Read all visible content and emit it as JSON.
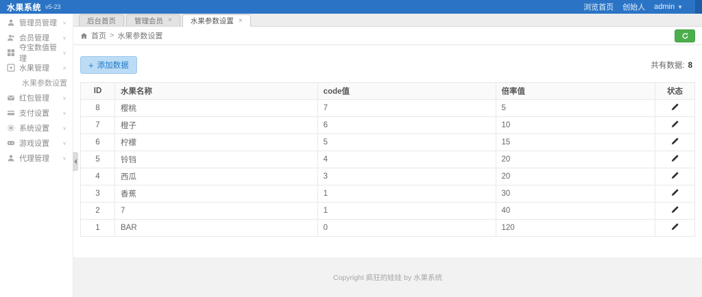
{
  "colors": {
    "brand_blue": "#2b74c5",
    "brand_blue_dark": "#1d5ea8",
    "refresh_green": "#4cae4c",
    "add_button_text": "#1e77c8",
    "add_button_bg": "#bcdcf5"
  },
  "topbar": {
    "title": "水果系统",
    "version": "v5-23",
    "links": {
      "browse_home": "浏览首页",
      "role": "创始人",
      "username": "admin"
    }
  },
  "sidebar": {
    "items": [
      {
        "label": "管理员管理",
        "icon": "user-icon",
        "expanded": false
      },
      {
        "label": "会员管理",
        "icon": "users-icon",
        "expanded": false
      },
      {
        "label": "夺宝数值管理",
        "icon": "treasure-icon",
        "expanded": false
      },
      {
        "label": "水果管理",
        "icon": "fruit-icon",
        "expanded": true,
        "children": [
          {
            "label": "水果参数设置",
            "active": true
          }
        ]
      },
      {
        "label": "红包管理",
        "icon": "red-packet-icon",
        "expanded": false
      },
      {
        "label": "支付设置",
        "icon": "payment-icon",
        "expanded": false
      },
      {
        "label": "系统设置",
        "icon": "gear-icon",
        "expanded": false
      },
      {
        "label": "游戏设置",
        "icon": "game-icon",
        "expanded": false
      },
      {
        "label": "代理管理",
        "icon": "agent-icon",
        "expanded": false
      }
    ]
  },
  "tabs": [
    {
      "label": "后台首页",
      "closable": false,
      "active": false
    },
    {
      "label": "管理会员",
      "closable": true,
      "active": false
    },
    {
      "label": "水果参数设置",
      "closable": true,
      "active": true
    }
  ],
  "breadcrumb": {
    "home": "首页",
    "separator": ">",
    "current": "水果参数设置"
  },
  "toolbar": {
    "add_button": "添加数据",
    "count_label": "共有数据:",
    "count": "8"
  },
  "table": {
    "headers": [
      "ID",
      "水果名称",
      "code值",
      "倍率值",
      "状态"
    ],
    "rows": [
      {
        "id": "8",
        "name": "樱桃",
        "code": "7",
        "rate": "5"
      },
      {
        "id": "7",
        "name": "橙子",
        "code": "6",
        "rate": "10"
      },
      {
        "id": "6",
        "name": "柠檬",
        "code": "5",
        "rate": "15"
      },
      {
        "id": "5",
        "name": "铃铛",
        "code": "4",
        "rate": "20"
      },
      {
        "id": "4",
        "name": "西瓜",
        "code": "3",
        "rate": "20"
      },
      {
        "id": "3",
        "name": "香蕉",
        "code": "1",
        "rate": "30"
      },
      {
        "id": "2",
        "name": "7",
        "code": "1",
        "rate": "40"
      },
      {
        "id": "1",
        "name": "BAR",
        "code": "0",
        "rate": "120"
      }
    ]
  },
  "footer": {
    "copyright": "Copyright 疯狂的娃娃 by 水果系统"
  }
}
